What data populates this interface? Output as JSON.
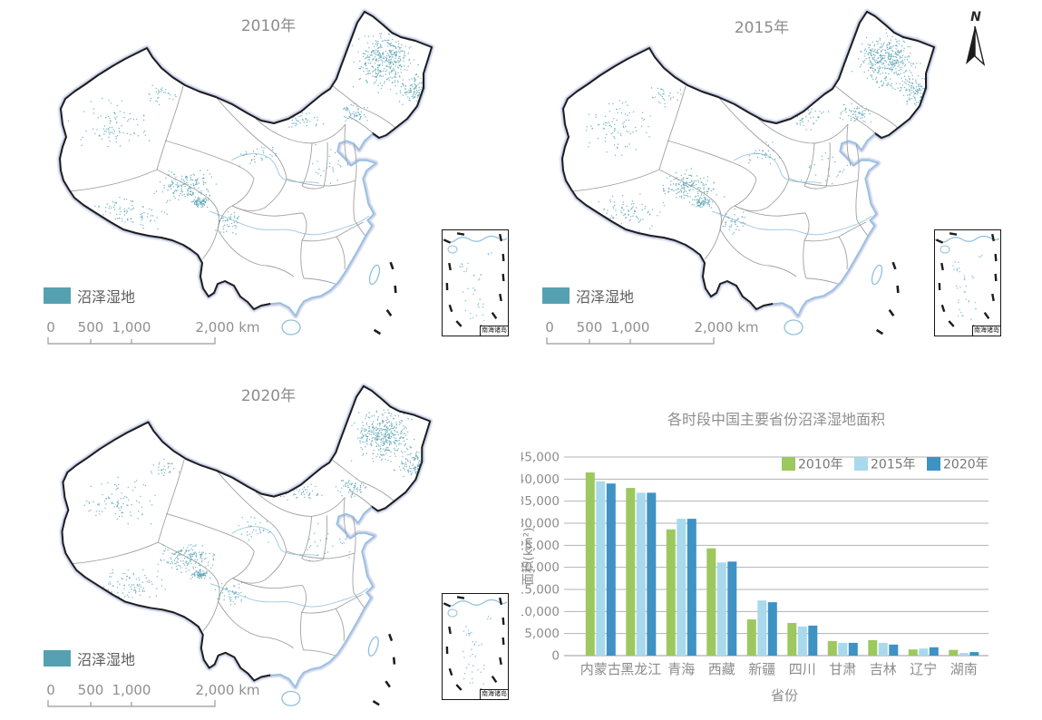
{
  "colors": {
    "wetland_teal": "#55a1b1",
    "coast_blue": "#8fbfdf",
    "border_black": "#1d1d1d",
    "glow_blue": "#97a5d8",
    "province_gray": "#909090",
    "grid_gray": "#b3b3b3",
    "text_gray": "#8c8c8c",
    "series_green": "#9cc85e",
    "series_lightblue": "#a9d9ec",
    "series_blue": "#3e92c4"
  },
  "maps": [
    {
      "title": "2010年"
    },
    {
      "title": "2015年"
    },
    {
      "title": "2020年"
    }
  ],
  "map_common": {
    "legend_label": "沼泽湿地",
    "scale_ticks": [
      "0",
      "500",
      "1,000",
      "2,000 km"
    ],
    "inset_label": "南海诸岛"
  },
  "north_arrow": {
    "label": "N"
  },
  "chart_data": {
    "type": "bar",
    "title": "各时段中国主要省份沼泽湿地面积",
    "xlabel": "省份",
    "ylabel": "面积(km²)",
    "categories": [
      "内蒙古",
      "黑龙江",
      "青海",
      "西藏",
      "新疆",
      "四川",
      "甘肃",
      "吉林",
      "辽宁",
      "湖南"
    ],
    "series": [
      {
        "name": "2010年",
        "color": "#9cc85e",
        "values": [
          41500,
          38000,
          28600,
          24300,
          8200,
          7400,
          3300,
          3500,
          1400,
          1300
        ]
      },
      {
        "name": "2015年",
        "color": "#a9d9ec",
        "values": [
          39500,
          36900,
          31000,
          21100,
          12500,
          6600,
          2900,
          2900,
          1600,
          600
        ]
      },
      {
        "name": "2020年",
        "color": "#3e92c4",
        "values": [
          39000,
          36900,
          31000,
          21300,
          12100,
          6800,
          2900,
          2500,
          1900,
          800
        ]
      }
    ],
    "ylim": [
      0,
      45000
    ],
    "ytick_step": 5000,
    "grid": true,
    "legend_position": "top-right"
  }
}
